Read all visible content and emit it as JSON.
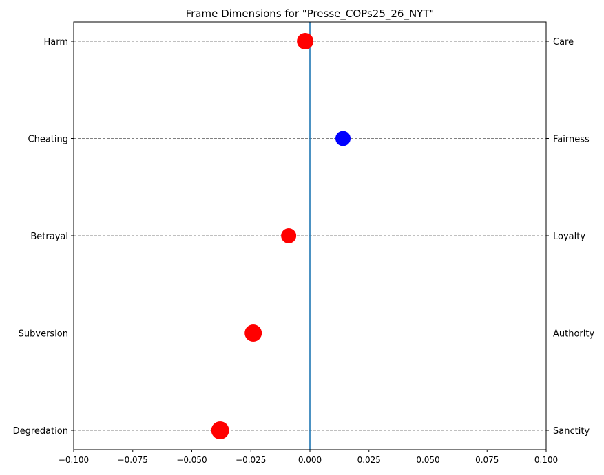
{
  "chart_data": {
    "type": "scatter",
    "title": "Frame Dimensions for \"Presse_COPs25_26_NYT\"",
    "xlim": [
      -0.1,
      0.1
    ],
    "x_ticks": [
      -0.1,
      -0.075,
      -0.05,
      -0.025,
      0.0,
      0.025,
      0.05,
      0.075,
      0.1
    ],
    "x_tick_labels": [
      "−0.100",
      "−0.075",
      "−0.050",
      "−0.025",
      "0.000",
      "0.025",
      "0.050",
      "0.075",
      "0.100"
    ],
    "left_labels": [
      "Harm",
      "Cheating",
      "Betrayal",
      "Subversion",
      "Degredation"
    ],
    "right_labels": [
      "Care",
      "Fairness",
      "Loyalty",
      "Authority",
      "Sanctity"
    ],
    "points": [
      {
        "dimension": "Care",
        "x": -0.002,
        "color": "#ff0000",
        "size": 12
      },
      {
        "dimension": "Fairness",
        "x": 0.014,
        "color": "#0000ff",
        "size": 11
      },
      {
        "dimension": "Loyalty",
        "x": -0.009,
        "color": "#ff0000",
        "size": 11
      },
      {
        "dimension": "Authority",
        "x": -0.024,
        "color": "#ff0000",
        "size": 12.5
      },
      {
        "dimension": "Sanctity",
        "x": -0.038,
        "color": "#ff0000",
        "size": 13
      }
    ],
    "zero_line_color": "#1f77b4",
    "grid": "horizontal dashed"
  }
}
